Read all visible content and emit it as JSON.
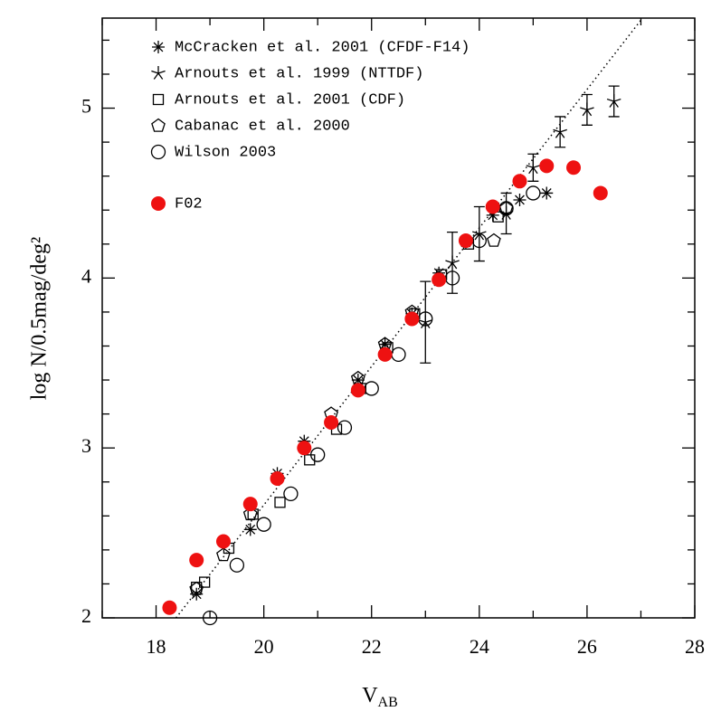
{
  "chart_data": {
    "type": "scatter",
    "x_label": {
      "text": "V",
      "subscript": "AB"
    },
    "y_label": "log N/0.5mag/deg²",
    "xlim": [
      17,
      28
    ],
    "ylim": [
      2,
      5.53
    ],
    "xticks": [
      18,
      20,
      22,
      24,
      26,
      28
    ],
    "yticks": [
      2,
      3,
      4,
      5
    ],
    "xticks_minor": [
      17,
      19,
      21,
      23,
      25,
      27
    ],
    "yticks_minor": [
      2.2,
      2.4,
      2.6,
      2.8,
      3.2,
      3.4,
      3.6,
      3.8,
      4.2,
      4.4,
      4.6,
      4.8,
      5.2,
      5.4
    ],
    "fit_line": {
      "x": [
        18.37,
        27.03
      ],
      "y": [
        2,
        5.53
      ]
    },
    "series": [
      {
        "name": "McCracken et al. 2001 (CFDF-F14)",
        "marker": "asterisk",
        "color": "#000000",
        "x": [
          18.75,
          19.75,
          20.25,
          20.75,
          21.75,
          22.25,
          22.75,
          23.25,
          23.75,
          24.25,
          24.75,
          25.25
        ],
        "values": [
          2.14,
          2.52,
          2.85,
          3.04,
          3.4,
          3.61,
          3.79,
          4.03,
          4.21,
          4.37,
          4.46,
          4.5
        ]
      },
      {
        "name": "Arnouts et al. 1999 (NTTDF)",
        "marker": "star",
        "color": "#000000",
        "x": [
          23.0,
          23.5,
          24.0,
          24.5,
          25.0,
          25.5,
          26.0,
          26.5
        ],
        "values": [
          3.74,
          4.09,
          4.26,
          4.38,
          4.65,
          4.86,
          4.99,
          5.04
        ],
        "errors": [
          0.24,
          0.18,
          0.16,
          0.12,
          0.08,
          0.09,
          0.09,
          0.09
        ]
      },
      {
        "name": "Arnouts et al. 2001 (CDF)",
        "marker": "square",
        "color": "#000000",
        "x": [
          18.75,
          18.9,
          19.35,
          19.8,
          20.3,
          20.85,
          21.35,
          21.8,
          22.3,
          22.8,
          23.3,
          23.8,
          24.35
        ],
        "values": [
          2.18,
          2.21,
          2.41,
          2.61,
          2.68,
          2.93,
          3.11,
          3.35,
          3.59,
          3.79,
          4.02,
          4.2,
          4.36
        ]
      },
      {
        "name": "Cabanac et al. 2000",
        "marker": "pentagon",
        "color": "#000000",
        "x": [
          18.75,
          19.25,
          19.75,
          21.25,
          21.75,
          22.25,
          22.75,
          24.27,
          24.5
        ],
        "values": [
          2.17,
          2.37,
          2.61,
          3.2,
          3.41,
          3.61,
          3.8,
          4.22,
          4.41
        ]
      },
      {
        "name": "Wilson 2003",
        "marker": "circle",
        "color": "#000000",
        "x": [
          19.0,
          19.5,
          20.0,
          20.5,
          21.0,
          21.5,
          22.0,
          22.5,
          23.0,
          23.5,
          24.0,
          24.5,
          25.0
        ],
        "values": [
          2.0,
          2.31,
          2.55,
          2.73,
          2.96,
          3.12,
          3.35,
          3.55,
          3.76,
          4.0,
          4.22,
          4.41,
          4.5
        ]
      },
      {
        "name": "F02",
        "marker": "dot",
        "color": "#ee1111",
        "x": [
          18.25,
          18.75,
          19.25,
          19.75,
          20.25,
          20.75,
          21.25,
          21.75,
          22.25,
          22.75,
          23.25,
          23.75,
          24.25,
          24.75,
          25.25,
          25.75,
          26.25
        ],
        "values": [
          2.06,
          2.34,
          2.45,
          2.67,
          2.82,
          3.0,
          3.15,
          3.34,
          3.55,
          3.76,
          3.99,
          4.22,
          4.42,
          4.57,
          4.66,
          4.65,
          4.5
        ]
      }
    ]
  }
}
